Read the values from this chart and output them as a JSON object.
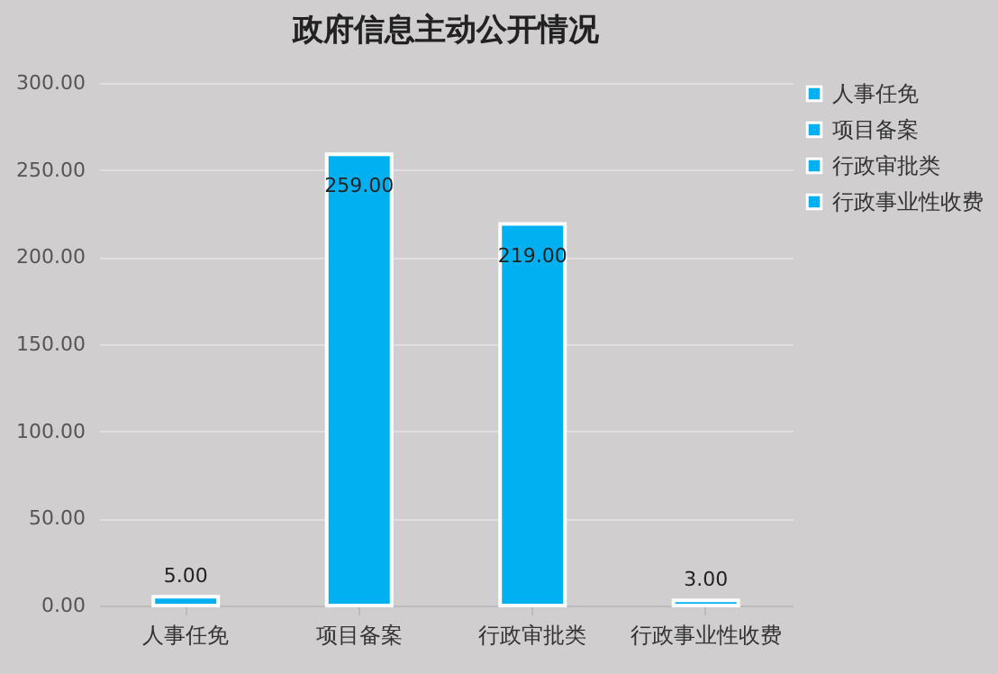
{
  "chart_data": {
    "type": "bar",
    "title": "政府信息主动公开情况",
    "categories": [
      "人事任免",
      "项目备案",
      "行政审批类",
      "行政事业性收费"
    ],
    "series": [
      {
        "name": "人事任免",
        "color": "#00b0f0",
        "values": [
          5,
          null,
          null,
          null
        ],
        "value_labels": [
          "5.00",
          null,
          null,
          null
        ]
      },
      {
        "name": "项目备案",
        "color": "#00b0f0",
        "values": [
          null,
          259,
          null,
          null
        ],
        "value_labels": [
          null,
          "259.00",
          null,
          null
        ]
      },
      {
        "name": "行政审批类",
        "color": "#00b0f0",
        "values": [
          null,
          null,
          219,
          null
        ],
        "value_labels": [
          null,
          null,
          "219.00",
          null
        ]
      },
      {
        "name": "行政事业性收费",
        "color": "#00b0f0",
        "values": [
          null,
          null,
          null,
          3
        ],
        "value_labels": [
          null,
          null,
          null,
          "3.00"
        ]
      }
    ],
    "ylim": [
      0,
      300
    ],
    "yticks": [
      {
        "value": 0,
        "label": "0.00"
      },
      {
        "value": 50,
        "label": "50.00"
      },
      {
        "value": 100,
        "label": "100.00"
      },
      {
        "value": 150,
        "label": "150.00"
      },
      {
        "value": 200,
        "label": "200.00"
      },
      {
        "value": 250,
        "label": "250.00"
      },
      {
        "value": 300,
        "label": "300.00"
      }
    ],
    "grid": "y",
    "legend": "right"
  }
}
